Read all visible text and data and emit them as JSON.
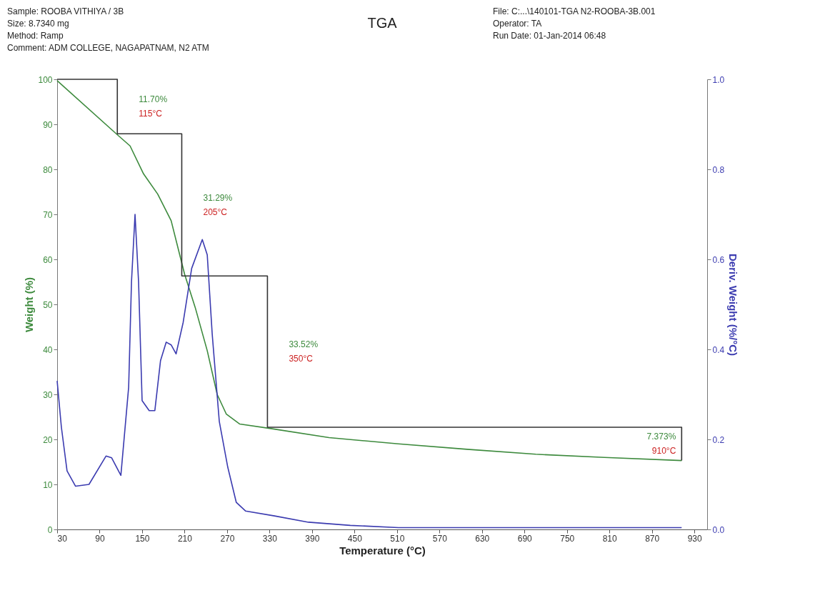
{
  "chart_data": {
    "type": "line",
    "title": "TGA",
    "xlabel": "Temperature (°C)",
    "ylabel": "Weight (%)",
    "y2label": "Deriv. Weight (%/°C)",
    "xlim": [
      30,
      948
    ],
    "xticks": [
      30,
      90,
      150,
      210,
      270,
      330,
      390,
      450,
      510,
      570,
      630,
      690,
      750,
      810,
      870,
      930
    ],
    "ylim": [
      0,
      100
    ],
    "yticks": [
      0,
      10,
      20,
      30,
      40,
      50,
      60,
      70,
      80,
      90,
      100
    ],
    "y2lim": [
      0,
      1
    ],
    "y2ticks": [
      {
        "value": 0,
        "label": "0.0"
      },
      {
        "value": 0.2,
        "label": "0.2"
      },
      {
        "value": 0.4,
        "label": "0.4"
      },
      {
        "value": 0.6,
        "label": "0.6"
      },
      {
        "value": 0.8,
        "label": "0.8"
      },
      {
        "value": 1,
        "label": "1.0"
      }
    ],
    "grid": false,
    "marker": "none",
    "line_style": "solid",
    "series": [
      {
        "color": "#3d8a3d",
        "x": [
          30,
          113.5,
          133,
          152,
          172,
          191,
          210,
          225,
          242,
          256,
          269,
          288,
          332,
          414,
          512,
          609,
          706,
          803,
          912
        ],
        "values": [
          99.7,
          87.9,
          85.2,
          79,
          74.5,
          68.6,
          56.7,
          49.3,
          39.7,
          30,
          25.6,
          23.4,
          22.4,
          20.4,
          19,
          17.8,
          16.7,
          16,
          15.3
        ]
      },
      {
        "color": "#3b3bb0",
        "axis": "y2",
        "x": [
          30,
          36,
          44,
          56,
          75,
          99,
          107,
          120,
          131,
          135,
          140,
          145,
          150,
          160,
          168,
          176,
          184,
          191,
          198,
          208,
          220,
          235,
          242,
          249,
          259,
          271,
          283,
          296,
          337,
          385,
          444,
          512,
          706,
          912
        ],
        "values": [
          0.33,
          0.227,
          0.13,
          0.096,
          0.1,
          0.163,
          0.159,
          0.12,
          0.316,
          0.55,
          0.7,
          0.55,
          0.286,
          0.264,
          0.264,
          0.375,
          0.416,
          0.41,
          0.39,
          0.46,
          0.58,
          0.644,
          0.61,
          0.434,
          0.24,
          0.138,
          0.06,
          0.041,
          0.03,
          0.016,
          0.009,
          0.004,
          0.004,
          0.004
        ]
      },
      {
        "color": "#333333",
        "x": [
          30,
          115,
          115,
          206,
          206,
          327,
          327,
          912,
          912
        ],
        "values": [
          100,
          100,
          87.9,
          87.9,
          56.3,
          56.3,
          22.7,
          22.7,
          15.3
        ]
      }
    ],
    "annotations": [
      "Sample: ROOBA VITHIYA / 3B",
      "Size:  8.7340 mg",
      "Method: Ramp",
      "Comment: ADM COLLEGE, NAGAPATNAM, N2 ATM",
      "File: C:...\\140101-TGA N2-ROOBA-3B.001",
      "Operator: TA",
      "Run Date: 01-Jan-2014 06:48",
      "11.70%",
      "115°C",
      "31.29%",
      "205°C",
      "33.52%",
      "350°C",
      "7.373%",
      "910°C"
    ]
  }
}
